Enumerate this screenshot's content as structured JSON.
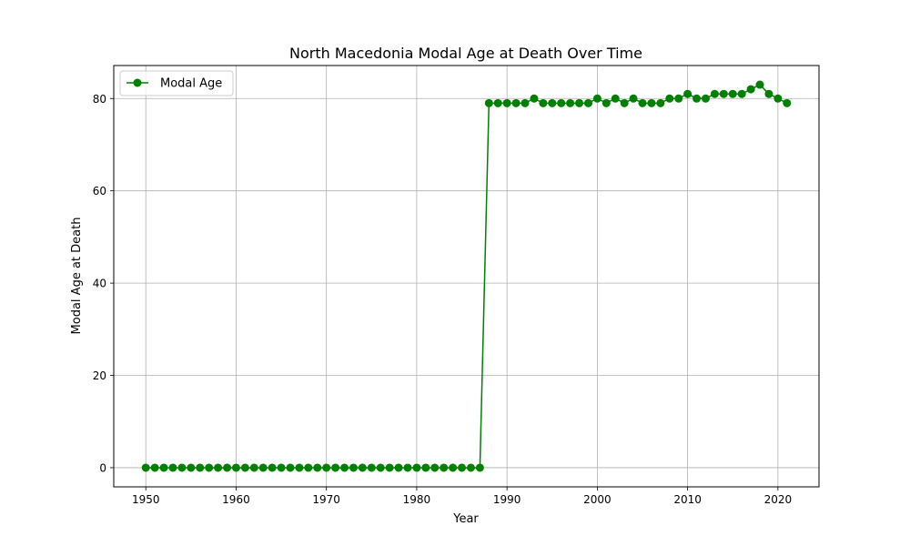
{
  "chart_data": {
    "type": "line",
    "title": "North Macedonia Modal Age at Death Over Time",
    "xlabel": "Year",
    "ylabel": "Modal Age at Death",
    "xlim": [
      1946.45,
      2024.55
    ],
    "ylim": [
      -4.15,
      87.15
    ],
    "xticks": [
      1950,
      1960,
      1970,
      1980,
      1990,
      2000,
      2010,
      2020
    ],
    "yticks": [
      0,
      20,
      40,
      60,
      80
    ],
    "grid": true,
    "legend_position": "top-left",
    "series": [
      {
        "name": "Modal Age",
        "color": "#008000",
        "marker": "circle",
        "x": [
          1950,
          1951,
          1952,
          1953,
          1954,
          1955,
          1956,
          1957,
          1958,
          1959,
          1960,
          1961,
          1962,
          1963,
          1964,
          1965,
          1966,
          1967,
          1968,
          1969,
          1970,
          1971,
          1972,
          1973,
          1974,
          1975,
          1976,
          1977,
          1978,
          1979,
          1980,
          1981,
          1982,
          1983,
          1984,
          1985,
          1986,
          1987,
          1988,
          1989,
          1990,
          1991,
          1992,
          1993,
          1994,
          1995,
          1996,
          1997,
          1998,
          1999,
          2000,
          2001,
          2002,
          2003,
          2004,
          2005,
          2006,
          2007,
          2008,
          2009,
          2010,
          2011,
          2012,
          2013,
          2014,
          2015,
          2016,
          2017,
          2018,
          2019,
          2020,
          2021
        ],
        "y": [
          0,
          0,
          0,
          0,
          0,
          0,
          0,
          0,
          0,
          0,
          0,
          0,
          0,
          0,
          0,
          0,
          0,
          0,
          0,
          0,
          0,
          0,
          0,
          0,
          0,
          0,
          0,
          0,
          0,
          0,
          0,
          0,
          0,
          0,
          0,
          0,
          0,
          0,
          79,
          79,
          79,
          79,
          79,
          80,
          79,
          79,
          79,
          79,
          79,
          79,
          80,
          79,
          80,
          79,
          80,
          79,
          79,
          79,
          80,
          80,
          81,
          80,
          80,
          81,
          81,
          81,
          81,
          82,
          83,
          81,
          80,
          79
        ]
      }
    ]
  }
}
